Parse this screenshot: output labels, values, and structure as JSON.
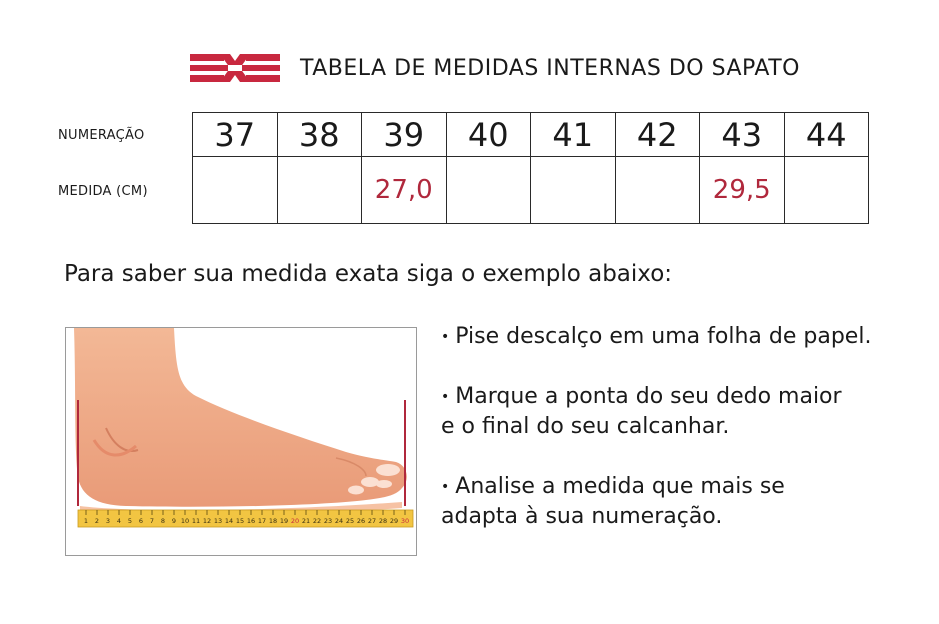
{
  "brand": {
    "logo_icon": "crossed-stripes-logo-icon",
    "color": "#c8283f"
  },
  "header": {
    "title": "TABELA DE MEDIDAS INTERNAS DO SAPATO"
  },
  "table": {
    "row_labels": {
      "size": "NUMERAÇÃO",
      "measure": "MEDIDA (CM)"
    },
    "sizes": [
      "37",
      "38",
      "39",
      "40",
      "41",
      "42",
      "43",
      "44"
    ],
    "measures": [
      "",
      "",
      "27,0",
      "",
      "",
      "",
      "29,5",
      ""
    ],
    "highlight_color": "#b0283c"
  },
  "instruction": "Para saber sua medida exata siga o exemplo abaixo:",
  "illustration": {
    "icon": "foot-on-ruler-icon",
    "ruler_ticks": [
      "1",
      "2",
      "3",
      "4",
      "5",
      "6",
      "7",
      "8",
      "9",
      "10",
      "11",
      "12",
      "13",
      "14",
      "15",
      "16",
      "17",
      "18",
      "19",
      "20",
      "21",
      "22",
      "23",
      "24",
      "25",
      "26",
      "27",
      "28",
      "29",
      "30"
    ]
  },
  "steps": [
    {
      "bullet": "•",
      "lines": [
        "Pise descalço em uma folha de papel."
      ]
    },
    {
      "bullet": "•",
      "lines": [
        "Marque a ponta do seu dedo maior",
        "e o final do seu calcanhar."
      ]
    },
    {
      "bullet": "•",
      "lines": [
        "Analise a medida que mais se",
        "adapta à sua numeração."
      ]
    }
  ]
}
